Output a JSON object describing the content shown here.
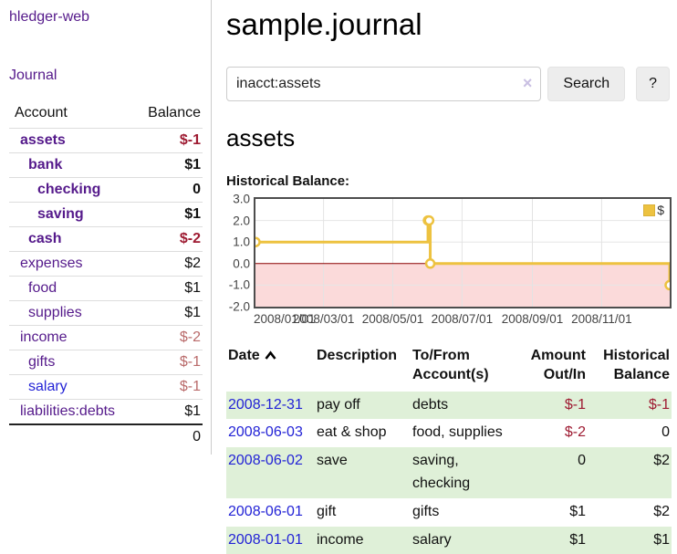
{
  "sidebar": {
    "brand": "hledger-web",
    "nav_journal": "Journal",
    "accounts_table": {
      "headers": [
        "Account",
        "Balance"
      ],
      "rows": [
        {
          "account": "assets",
          "balance": "$-1",
          "level": 1,
          "bold": true,
          "balance_style": "neg-strong"
        },
        {
          "account": "bank",
          "balance": "$1",
          "level": 2,
          "bold": true,
          "balance_style": "pos"
        },
        {
          "account": "checking",
          "balance": "0",
          "level": 3,
          "bold": true,
          "balance_style": "pos"
        },
        {
          "account": "saving",
          "balance": "$1",
          "level": 3,
          "bold": true,
          "balance_style": "pos"
        },
        {
          "account": "cash",
          "balance": "$-2",
          "level": 2,
          "bold": true,
          "balance_style": "neg-strong"
        },
        {
          "account": "expenses",
          "balance": "$2",
          "level": 1,
          "bold": false,
          "balance_style": "pos"
        },
        {
          "account": "food",
          "balance": "$1",
          "level": 2,
          "bold": false,
          "balance_style": "pos"
        },
        {
          "account": "supplies",
          "balance": "$1",
          "level": 2,
          "bold": false,
          "balance_style": "pos"
        },
        {
          "account": "income",
          "balance": "$-2",
          "level": 1,
          "bold": false,
          "balance_style": "neg-soft"
        },
        {
          "account": "gifts",
          "balance": "$-1",
          "level": 2,
          "bold": false,
          "balance_style": "neg-soft"
        },
        {
          "account": "salary",
          "balance": "$-1",
          "level": 2,
          "bold": false,
          "balance_style": "neg-soft",
          "link_style": "blue"
        },
        {
          "account": "liabilities:debts",
          "balance": "$1",
          "level": 1,
          "bold": false,
          "balance_style": "pos"
        }
      ],
      "total": "0"
    }
  },
  "main": {
    "title": "sample.journal",
    "search": {
      "value": "inacct:assets",
      "clear_icon": "×",
      "button": "Search",
      "help_button": "?"
    },
    "account_heading": "assets",
    "chart_label": "Historical Balance:",
    "register_table": {
      "headers": [
        "Date",
        "Description",
        "To/From Account(s)",
        "Amount Out/In",
        "Historical Balance"
      ],
      "sort_column": "Date",
      "sort_direction": "ascending",
      "rows": [
        {
          "date": "2008-12-31",
          "description": "pay off",
          "accounts": "debts",
          "amount": "$-1",
          "balance": "$-1"
        },
        {
          "date": "2008-06-03",
          "description": "eat & shop",
          "accounts": "food, supplies",
          "amount": "$-2",
          "balance": "0"
        },
        {
          "date": "2008-06-02",
          "description": "save",
          "accounts": "saving, checking",
          "amount": "0",
          "balance": "$2"
        },
        {
          "date": "2008-06-01",
          "description": "gift",
          "accounts": "gifts",
          "amount": "$1",
          "balance": "$2"
        },
        {
          "date": "2008-01-01",
          "description": "income",
          "accounts": "salary",
          "amount": "$1",
          "balance": "$1"
        }
      ]
    }
  },
  "chart_data": {
    "type": "line",
    "step": true,
    "title": "Historical Balance",
    "series": [
      {
        "name": "$",
        "color": "#edc240",
        "points": [
          [
            "2008-01-01",
            1
          ],
          [
            "2008-06-01",
            2
          ],
          [
            "2008-06-02",
            2
          ],
          [
            "2008-06-03",
            0
          ],
          [
            "2008-12-31",
            -1
          ]
        ]
      }
    ],
    "xlim": [
      "2008-01-01",
      "2008-12-31"
    ],
    "ylim": [
      -2,
      3
    ],
    "yticks": [
      3.0,
      2.0,
      1.0,
      0.0,
      -1.0,
      -2.0
    ],
    "ytick_labels": [
      "3.0",
      "2.0",
      "1.0",
      "0.0",
      "-1.0",
      "-2.0"
    ],
    "xticks": [
      "2008-01-01",
      "2008-03-01",
      "2008-05-01",
      "2008-07-01",
      "2008-09-01",
      "2008-11-01"
    ],
    "xtick_labels": [
      "2008/01/01",
      "2008/03/01",
      "2008/05/01",
      "2008/07/01",
      "2008/09/01",
      "2008/11/01"
    ],
    "grid": true,
    "legend_position": "top-right",
    "negative_region_shaded": true
  },
  "colors": {
    "link_purple": "#551a8b",
    "link_blue": "#2323d6",
    "negative_strong": "#9e1b32",
    "negative_soft": "#b96a6a",
    "row_green": "#dff0d8",
    "series_yellow": "#edc240",
    "negative_region": "#fbdada",
    "zero_line": "#8b0000"
  }
}
